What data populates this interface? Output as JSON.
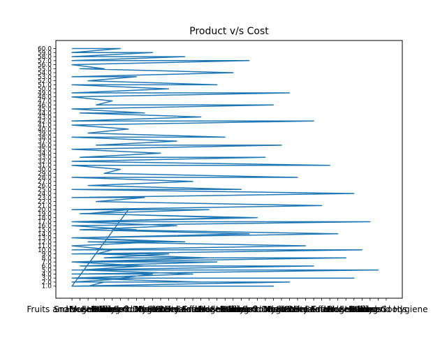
{
  "chart_data": {
    "type": "line",
    "title": "Product v/s Cost",
    "xlabel": "",
    "ylabel": "",
    "grid": false,
    "legend": "none",
    "series_color": "#1f77b4",
    "x_categories_visible": [
      "Fruits and Vegetables",
      "Snack Foods",
      "Household",
      "Frozen Foods",
      "Dairy",
      "Canned",
      "Baking Goods",
      "Health and Hygiene",
      "Soft Drinks",
      "Meat",
      "Breads",
      "Hard Drinks",
      "Others",
      "Starchy Foods",
      "Breakfast",
      "Seafood"
    ],
    "x_tick_count": 40,
    "y_tick_count": 60,
    "y_tick_labels_sample": [
      "1.0",
      "2.0",
      "3.0",
      "4.0",
      "5.0",
      "6.0",
      "7.0",
      "8.0",
      "9.0",
      "10.0",
      "11.0",
      "12.0",
      "13.0",
      "14.0",
      "15.0",
      "16.0",
      "17.0",
      "18.0",
      "19.0",
      "20.0",
      "21.0",
      "22.0",
      "23.0",
      "24.0",
      "25.0",
      "26.0",
      "27.0",
      "28.0",
      "29.0",
      "30.0",
      "31.0",
      "32.0",
      "33.0",
      "34.0",
      "35.0",
      "36.0",
      "37.0",
      "38.0",
      "39.0",
      "40.0",
      "41.0",
      "42.0",
      "43.0",
      "44.0",
      "45.0",
      "46.0",
      "47.0",
      "48.0",
      "49.0",
      "50.0",
      "51.0",
      "52.0",
      "53.0",
      "54.0",
      "55.0",
      "56.0",
      "57.0",
      "58.0",
      "59.0",
      "60.0"
    ],
    "series": [
      {
        "x": [
          0,
          6,
          0,
          10,
          0,
          14,
          0,
          22,
          0,
          4,
          1,
          20,
          0,
          8,
          2,
          18,
          0,
          12,
          0,
          27,
          0,
          5,
          3,
          25,
          0,
          9,
          1,
          16,
          0,
          30,
          0,
          7,
          2,
          19,
          0,
          13,
          3,
          26,
          0,
          11,
          1,
          24,
          0,
          32,
          0,
          6,
          4,
          28,
          0,
          15,
          2,
          21,
          0,
          35,
          0,
          9,
          3,
          31,
          0,
          17,
          1,
          23,
          0,
          37,
          0,
          8,
          5,
          33,
          0,
          14,
          2,
          29,
          0,
          36,
          0,
          12,
          4,
          34,
          0,
          18,
          1,
          30,
          0,
          38,
          0,
          10,
          6,
          35,
          0,
          16,
          3,
          27,
          0,
          25,
          0,
          7,
          2,
          20,
          0,
          13,
          1,
          22,
          0,
          11,
          0,
          5,
          3,
          17,
          0,
          9,
          1,
          15,
          0,
          8,
          0,
          4,
          2,
          12,
          0,
          6
        ],
        "y": [
          60,
          60,
          59,
          59,
          58,
          58,
          57,
          57,
          56,
          55,
          55,
          54,
          53,
          53,
          52,
          51,
          51,
          50,
          49,
          49,
          48,
          47,
          46,
          46,
          45,
          44,
          44,
          43,
          42,
          42,
          41,
          40,
          39,
          38,
          38,
          37,
          36,
          36,
          35,
          34,
          33,
          33,
          32,
          31,
          31,
          30,
          29,
          28,
          28,
          27,
          26,
          25,
          25,
          24,
          23,
          23,
          22,
          21,
          20,
          20,
          19,
          18,
          17,
          17,
          16,
          15,
          15,
          14,
          13,
          12,
          12,
          11,
          10,
          10,
          9,
          9,
          8,
          8,
          7,
          7,
          6,
          6,
          5,
          5,
          4,
          4,
          3,
          3,
          3,
          2,
          2,
          2,
          1,
          1,
          1,
          20,
          19,
          18,
          17,
          16,
          15,
          14,
          13,
          12,
          11,
          10,
          9,
          8,
          7,
          6,
          5,
          4,
          3,
          3,
          2,
          2,
          1,
          1,
          1,
          1
        ]
      }
    ]
  }
}
